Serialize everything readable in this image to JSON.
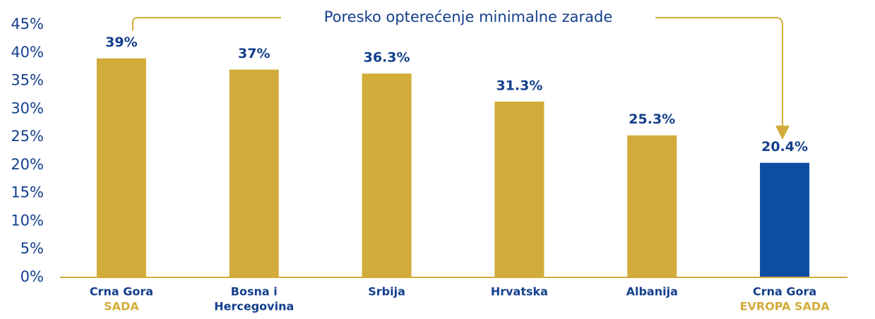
{
  "chart_data": {
    "type": "bar",
    "annotation": "Poresko opterećenje minimalne zarade",
    "categories": [
      [
        "Crna Gora"
      ],
      [
        "Bosna i",
        "Hercegovina"
      ],
      [
        "Srbija"
      ],
      [
        "Hrvatska"
      ],
      [
        "Albanija"
      ],
      [
        "Crna Gora"
      ]
    ],
    "category_notes": [
      "SADA",
      null,
      null,
      null,
      null,
      "EVROPA SADA"
    ],
    "values": [
      39,
      37,
      36.3,
      31.3,
      25.3,
      20.4
    ],
    "value_labels": [
      "39%",
      "37%",
      "36.3%",
      "31.3%",
      "25.3%",
      "20.4%"
    ],
    "colors": [
      "#d2ac3a",
      "#d2ac3a",
      "#d2ac3a",
      "#d2ac3a",
      "#d2ac3a",
      "#0c4ea1"
    ],
    "ylim": [
      0,
      45
    ],
    "yticks": [
      {
        "value": 0,
        "label": "0%"
      },
      {
        "value": 5,
        "label": "5%"
      },
      {
        "value": 10,
        "label": "10%"
      },
      {
        "value": 15,
        "label": "15%"
      },
      {
        "value": 20,
        "label": "20%"
      },
      {
        "value": 25,
        "label": "25%"
      },
      {
        "value": 30,
        "label": "30%"
      },
      {
        "value": 35,
        "label": "35%"
      },
      {
        "value": 40,
        "label": "40%"
      },
      {
        "value": 45,
        "label": "45%"
      }
    ],
    "grid": false
  }
}
